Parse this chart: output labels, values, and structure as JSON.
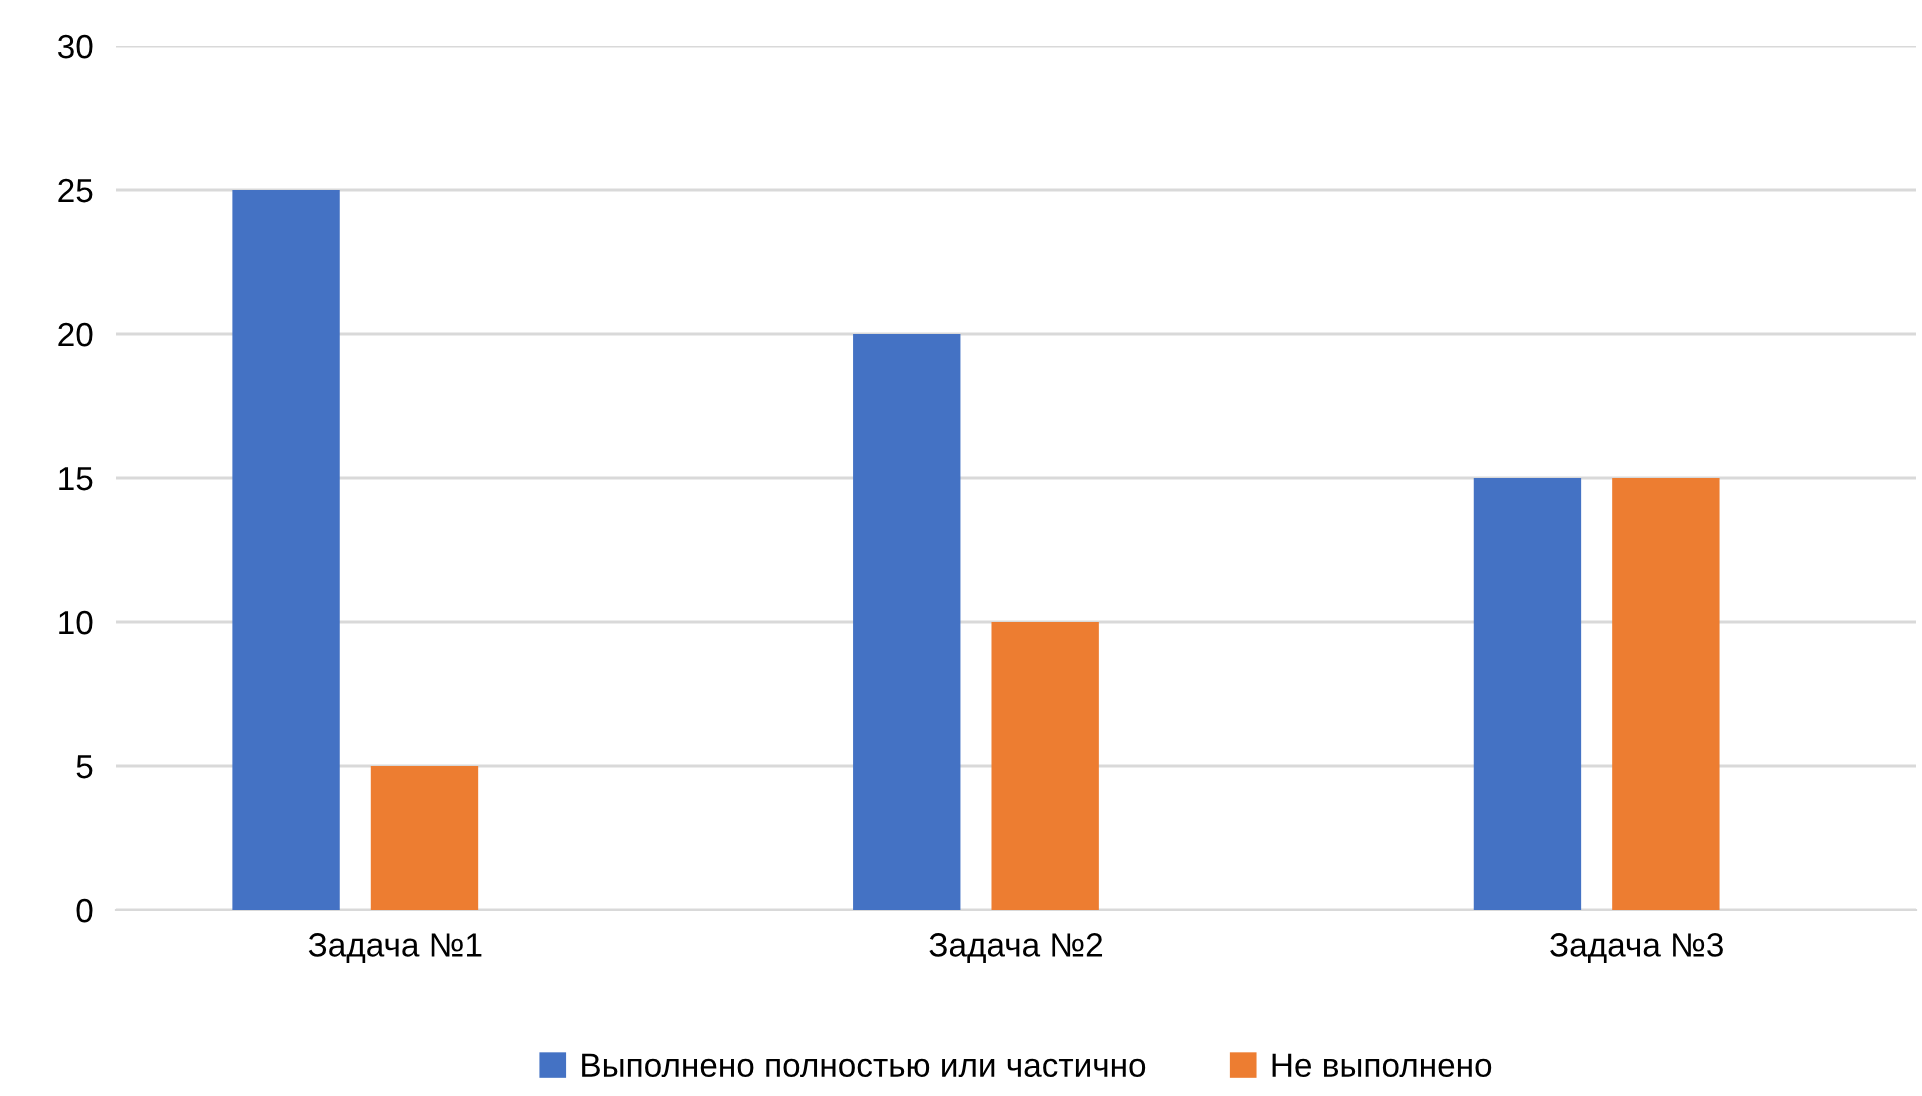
{
  "chart_data": {
    "type": "bar",
    "categories": [
      "Задача №1",
      "Задача №2",
      "Задача №3"
    ],
    "series": [
      {
        "name": "Выполнено полностью или частично",
        "color": "#4472c4",
        "values": [
          25,
          20,
          15
        ]
      },
      {
        "name": "Не выполнено",
        "color": "#ed7d31",
        "values": [
          5,
          10,
          15
        ]
      }
    ],
    "ylim": [
      0,
      30
    ],
    "yticks": [
      0,
      5,
      10,
      15,
      20,
      25,
      30
    ],
    "grid": "y",
    "legend": "bottom"
  }
}
